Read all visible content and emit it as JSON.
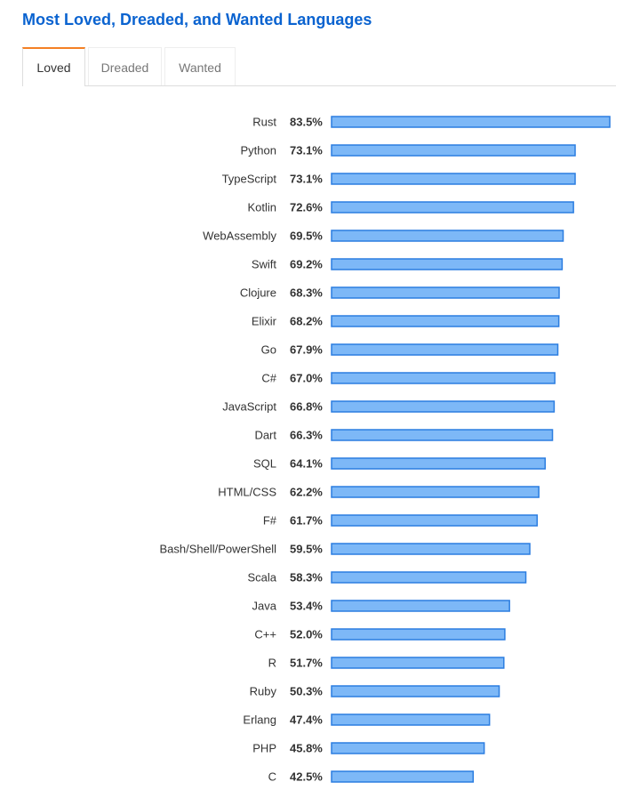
{
  "header": {
    "title": "Most Loved, Dreaded, and Wanted Languages"
  },
  "tabs": [
    {
      "label": "Loved",
      "active": true
    },
    {
      "label": "Dreaded",
      "active": false
    },
    {
      "label": "Wanted",
      "active": false
    }
  ],
  "colors": {
    "title": "#0a63d0",
    "active_tab_accent": "#f48024",
    "bar_fill": "#7db8f7",
    "bar_stroke": "#2b7de0"
  },
  "chart_data": {
    "type": "bar",
    "orientation": "horizontal",
    "value_format": "percent",
    "categories": [
      "Rust",
      "Python",
      "TypeScript",
      "Kotlin",
      "WebAssembly",
      "Swift",
      "Clojure",
      "Elixir",
      "Go",
      "C#",
      "JavaScript",
      "Dart",
      "SQL",
      "HTML/CSS",
      "F#",
      "Bash/Shell/PowerShell",
      "Scala",
      "Java",
      "C++",
      "R",
      "Ruby",
      "Erlang",
      "PHP",
      "C"
    ],
    "values": [
      83.5,
      73.1,
      73.1,
      72.6,
      69.5,
      69.2,
      68.3,
      68.2,
      67.9,
      67.0,
      66.8,
      66.3,
      64.1,
      62.2,
      61.7,
      59.5,
      58.3,
      53.4,
      52.0,
      51.7,
      50.3,
      47.4,
      45.8,
      42.5
    ],
    "value_labels": [
      "83.5%",
      "73.1%",
      "73.1%",
      "72.6%",
      "69.5%",
      "69.2%",
      "68.3%",
      "68.2%",
      "67.9%",
      "67.0%",
      "66.8%",
      "66.3%",
      "64.1%",
      "62.2%",
      "61.7%",
      "59.5%",
      "58.3%",
      "53.4%",
      "52.0%",
      "51.7%",
      "50.3%",
      "47.4%",
      "45.8%",
      "42.5%"
    ],
    "title": "",
    "xlabel": "",
    "ylabel": "",
    "xlim": [
      0,
      83.5
    ],
    "grid": false,
    "legend": "none"
  }
}
